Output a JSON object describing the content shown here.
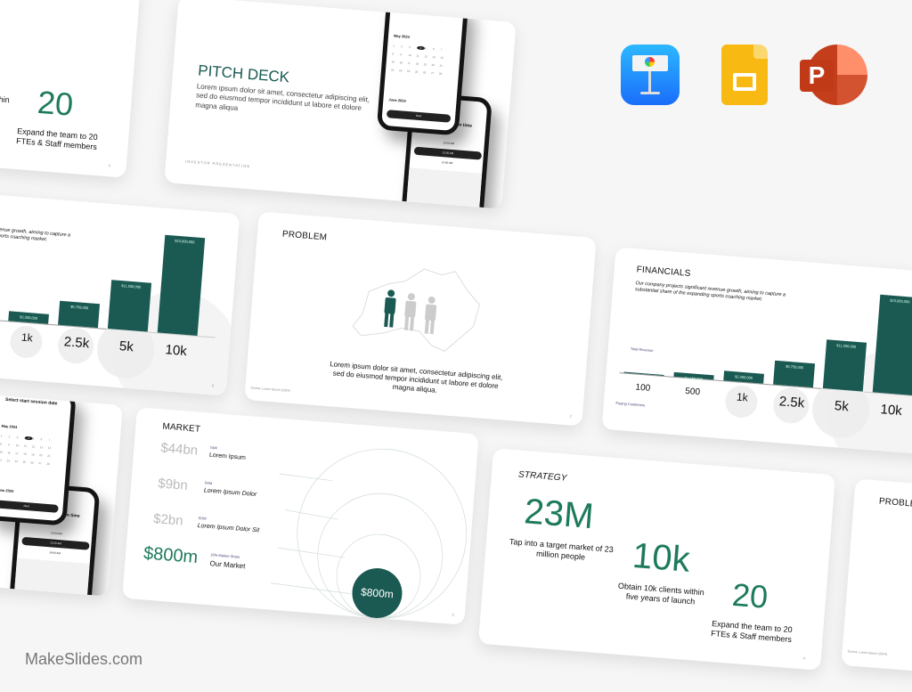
{
  "brand": {
    "label": "MakeSlides.com"
  },
  "apps": [
    {
      "name": "Keynote",
      "icon": "keynote-icon"
    },
    {
      "name": "Google Slides",
      "icon": "google-slides-icon"
    },
    {
      "name": "PowerPoint",
      "icon": "powerpoint-icon"
    }
  ],
  "colors": {
    "accent": "#1a5a52",
    "accent_text": "#1d7a5c",
    "muted": "#bbbbbb"
  },
  "pitch": {
    "title": "PITCH DECK",
    "body": "Lorem ipsum dolor sit amet, consectetur adipiscing elit, sed do eiusmod tempor incididunt ut labore et dolore magna aliqua",
    "footer": "INVESTOR PRESENTATION"
  },
  "phones": {
    "date_title": "Select start session date",
    "month1": "May 2024",
    "month2": "June 2024",
    "next": "Next",
    "time_title": "Select start session time",
    "times": [
      "10:00 AM",
      "12:00 AM",
      "14:00 AM"
    ]
  },
  "strategy": {
    "title": "STRATEGY",
    "stats": [
      {
        "value": "23M",
        "text": "Tap into a target market of 23 million people"
      },
      {
        "value": "10k",
        "text": "Obtain 10k clients within five years of launch"
      },
      {
        "value": "20",
        "text": "Expand the team to 20 FTEs & Staff members"
      }
    ],
    "page": "4"
  },
  "financials": {
    "title": "FINANCIALS",
    "body": "Our company projects significant revenue growth, aiming to capture a substantial share of the expanding sports coaching market.",
    "revenue_label": "Total Revenue",
    "customers_label": "Paying Customers",
    "page": "6",
    "chart_data": {
      "type": "bar",
      "categories": [
        "100",
        "500",
        "1k",
        "2.5k",
        "5k",
        "10k"
      ],
      "values": [
        230000,
        1150000,
        2300000,
        5750000,
        11500000,
        23000000
      ],
      "labels": [
        "",
        "$1,150,000",
        "$2,300,000",
        "$5,750,000",
        "$11,500,000",
        "$23,000,000"
      ]
    }
  },
  "problem": {
    "title": "PROBLEM",
    "body": "Lorem ipsum dolor sit amet, consectetur adipiscing elit, sed do eiusmod tempor incididunt ut labore et dolore magna aliqua.",
    "source": "Source: Lorem Ipsum (2024)",
    "page": "2"
  },
  "market": {
    "title": "MARKET",
    "rows": [
      {
        "value": "$44bn",
        "tag": "TAM",
        "label": "Lorem Ipsum"
      },
      {
        "value": "$9bn",
        "tag": "SAM",
        "label": "Lorem Ipsum Dolor"
      },
      {
        "value": "$2bn",
        "tag": "SOM",
        "label": "Lorem Ipsum Dolor Sit"
      },
      {
        "value": "$800m",
        "tag": "10% Market Share",
        "label": "Our Market"
      }
    ],
    "bubble": "$800m",
    "page": "5"
  }
}
